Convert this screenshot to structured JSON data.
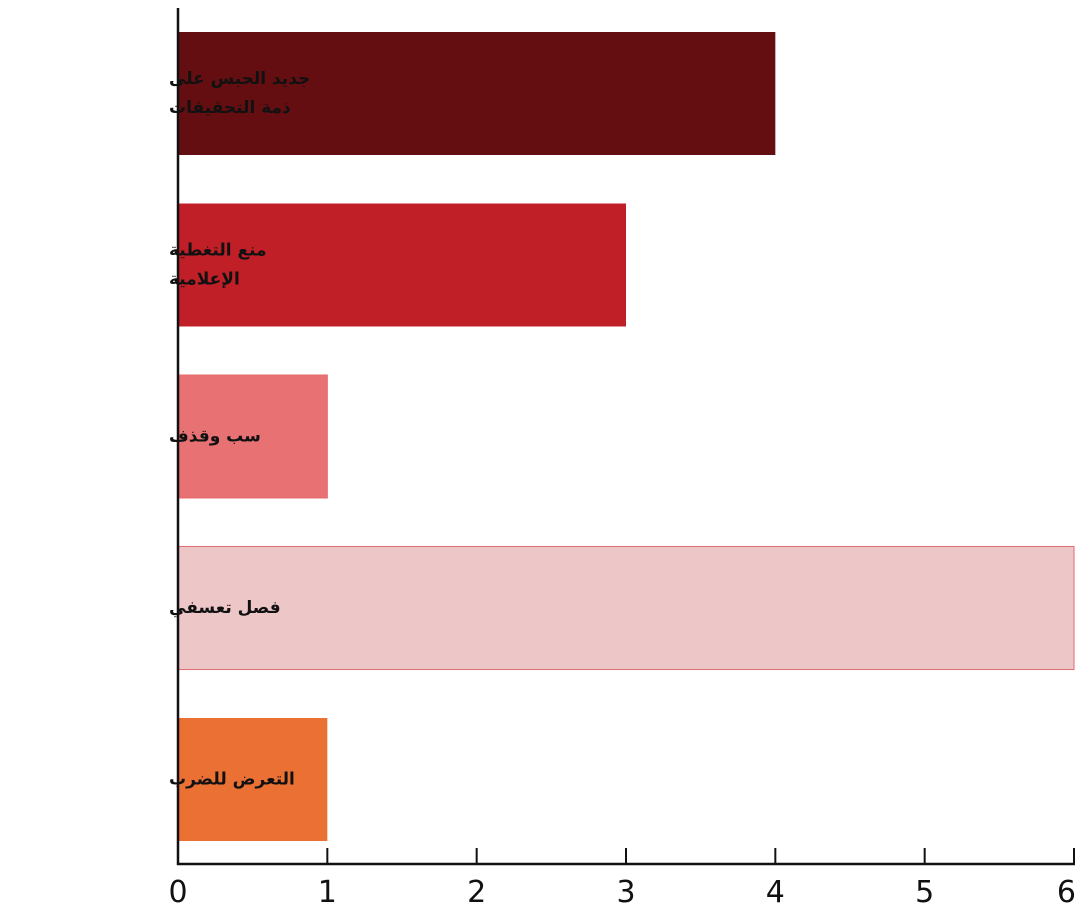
{
  "chart_data": {
    "type": "bar",
    "orientation": "horizontal",
    "categories": [
      [
        "جديد الحبس على",
        "ذمة التحقيقات"
      ],
      [
        "منع التغطية",
        "الإعلامية"
      ],
      [
        "سب وقذف"
      ],
      [
        "فصل تعسفي"
      ],
      [
        "التعرض للضرب"
      ]
    ],
    "values": [
      4,
      3,
      1,
      6,
      1
    ],
    "colors": [
      "#650e12",
      "#c11f27",
      "#e87273",
      "#edc6c8",
      "#eb7034"
    ],
    "bar_strokes": [
      "none",
      "none",
      "#e46b6e",
      "#e46b6e",
      "none"
    ],
    "xlim": [
      0,
      6
    ],
    "xticks": [
      "0",
      "1",
      "2",
      "3",
      "4",
      "5",
      "6"
    ],
    "title": "",
    "xlabel": "",
    "ylabel": "",
    "grid": false,
    "legend": "none"
  }
}
